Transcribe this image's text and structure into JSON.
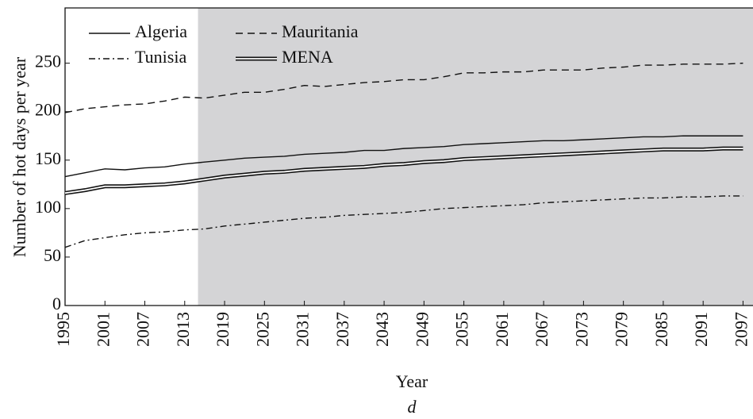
{
  "chart_data": {
    "type": "line",
    "x_label": "Year",
    "y_label": "Number of hot days per year",
    "caption": "d",
    "x": [
      1995,
      1998,
      2001,
      2004,
      2007,
      2010,
      2013,
      2016,
      2019,
      2022,
      2025,
      2028,
      2031,
      2034,
      2037,
      2040,
      2043,
      2046,
      2049,
      2052,
      2055,
      2058,
      2061,
      2064,
      2067,
      2070,
      2073,
      2076,
      2079,
      2082,
      2085,
      2088,
      2091,
      2094,
      2097
    ],
    "series": [
      {
        "name": "Algeria",
        "color": "#111111",
        "style": "solid",
        "values": [
          133,
          137,
          141,
          140,
          142,
          143,
          146,
          148,
          150,
          152,
          153,
          154,
          156,
          157,
          158,
          160,
          160,
          162,
          163,
          164,
          166,
          167,
          168,
          169,
          170,
          170,
          171,
          172,
          173,
          174,
          174,
          175,
          175,
          175,
          175
        ]
      },
      {
        "name": "Mauritania",
        "color": "#111111",
        "style": "dashed",
        "values": [
          199,
          203,
          205,
          207,
          208,
          211,
          215,
          214,
          217,
          220,
          220,
          223,
          227,
          226,
          228,
          230,
          231,
          233,
          233,
          236,
          240,
          240,
          241,
          241,
          243,
          243,
          243,
          245,
          246,
          248,
          248,
          249,
          249,
          249,
          250
        ]
      },
      {
        "name": "Tunisia",
        "color": "#111111",
        "style": "dashdot",
        "values": [
          60,
          67,
          70,
          73,
          75,
          76,
          78,
          79,
          82,
          84,
          86,
          88,
          90,
          91,
          93,
          94,
          95,
          96,
          98,
          100,
          101,
          102,
          103,
          104,
          106,
          107,
          108,
          109,
          110,
          111,
          111,
          112,
          112,
          113,
          113
        ]
      },
      {
        "name": "MENA",
        "color": "#111111",
        "style": "double",
        "values": [
          116,
          119,
          123,
          123,
          124,
          125,
          127,
          130,
          133,
          135,
          137,
          138,
          140,
          141,
          142,
          143,
          145,
          146,
          148,
          149,
          151,
          152,
          153,
          154,
          155,
          156,
          157,
          158,
          159,
          160,
          161,
          161,
          161,
          162,
          162
        ]
      }
    ],
    "xlim": [
      1995,
      2098.5
    ],
    "xticks": [
      1995,
      2001,
      2007,
      2013,
      2019,
      2025,
      2031,
      2037,
      2043,
      2049,
      2055,
      2061,
      2067,
      2073,
      2079,
      2085,
      2091,
      2097
    ],
    "ylim": [
      0,
      307
    ],
    "yticks": [
      0,
      50,
      100,
      150,
      200,
      250
    ],
    "shaded_from": 2015,
    "shade_color": "#d4d4d6",
    "grid": false,
    "legend": "upper left"
  }
}
